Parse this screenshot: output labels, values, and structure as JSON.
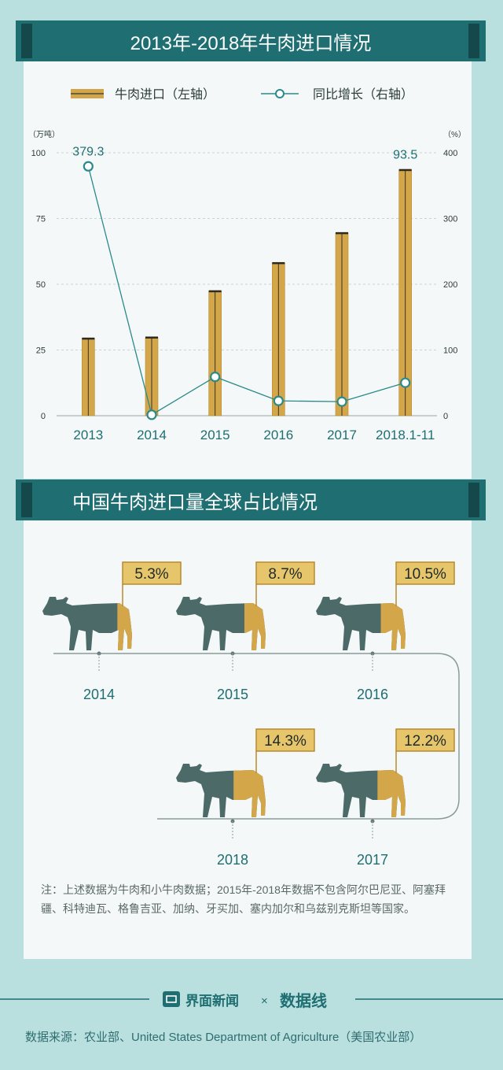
{
  "chart1": {
    "title": "2013年-2018年牛肉进口情况",
    "legend": {
      "bar_label": "牛肉进口（左轴）",
      "line_label": "同比增长（右轴）"
    },
    "left_unit": "（万吨）",
    "right_unit": "（%）"
  },
  "chart_data": {
    "type": "bar",
    "title": "2013年-2018年牛肉进口情况",
    "categories": [
      "2013",
      "2014",
      "2015",
      "2016",
      "2017",
      "2018.1-11"
    ],
    "series": [
      {
        "name": "牛肉进口（左轴）",
        "type": "bar",
        "axis": "left",
        "values": [
          29.4,
          29.8,
          47.4,
          58.1,
          69.5,
          93.5
        ]
      },
      {
        "name": "同比增长（右轴）",
        "type": "line",
        "axis": "right",
        "values": [
          379.3,
          1.4,
          59.1,
          22.6,
          21.4,
          50.2
        ]
      }
    ],
    "data_labels": [
      {
        "series": "同比增长（右轴）",
        "category": "2013",
        "text": "379.3"
      },
      {
        "series": "牛肉进口（左轴）",
        "category": "2018.1-11",
        "text": "93.5"
      }
    ],
    "ylim_left": [
      0,
      100
    ],
    "yticks_left": [
      "0",
      "25",
      "50",
      "75",
      "100"
    ],
    "ylim_right": [
      0,
      400
    ],
    "yticks_right": [
      "0",
      "100",
      "200",
      "300",
      "400"
    ],
    "ylabel_left": "（万吨）",
    "ylabel_right": "（%）",
    "grid": true,
    "legend_position": "top"
  },
  "colors": {
    "bar": "#d4a64a",
    "bar_edge": "#b98a2e",
    "line": "#2a8a8c",
    "teal_dark": "#1e6e72",
    "cow": "#4b6a68",
    "tag_fill": "#e7c66b"
  },
  "chart2": {
    "title": "中国牛肉进口量全球占比情况",
    "items": [
      {
        "year": "2014",
        "pct": "5.3%",
        "share": 0.053
      },
      {
        "year": "2015",
        "pct": "8.7%",
        "share": 0.087
      },
      {
        "year": "2016",
        "pct": "10.5%",
        "share": 0.105
      },
      {
        "year": "2018",
        "pct": "14.3%",
        "share": 0.143
      },
      {
        "year": "2017",
        "pct": "12.2%",
        "share": 0.122
      }
    ]
  },
  "note": "注：上述数据为牛肉和小牛肉数据；2015年-2018年数据不包含阿尔巴尼亚、阿塞拜疆、科特迪瓦、格鲁吉亚、加纳、牙买加、塞内加尔和乌兹别克斯坦等国家。",
  "footer": {
    "brand": "界面新闻",
    "times": "×",
    "partner": "数据线",
    "source": "数据来源：农业部、United States Department of Agriculture（美国农业部）"
  }
}
